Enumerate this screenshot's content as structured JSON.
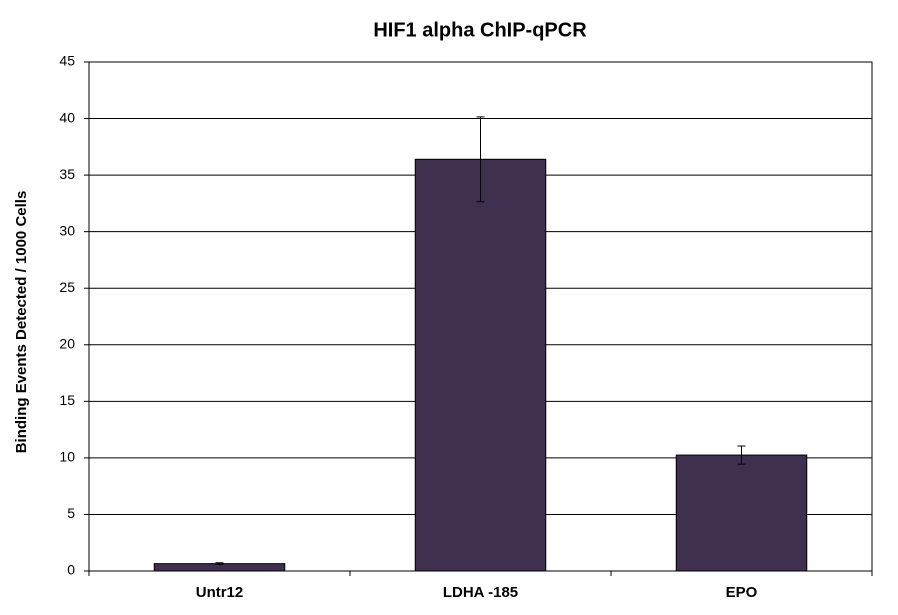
{
  "chart_data": {
    "type": "bar",
    "title": "HIF1 alpha ChIP-qPCR",
    "y_label": "Binding Events Detected / 1000 Cells",
    "categories": [
      "Untr12",
      "LDHA -185",
      "EPO"
    ],
    "values": [
      0.65,
      36.4,
      10.25
    ],
    "errors": [
      0.08,
      3.75,
      0.8
    ],
    "color": "#3f3050",
    "ylim": [
      0,
      45
    ],
    "yticks": [
      0,
      5,
      10,
      15,
      20,
      25,
      30,
      35,
      40,
      45
    ],
    "grid": true
  }
}
